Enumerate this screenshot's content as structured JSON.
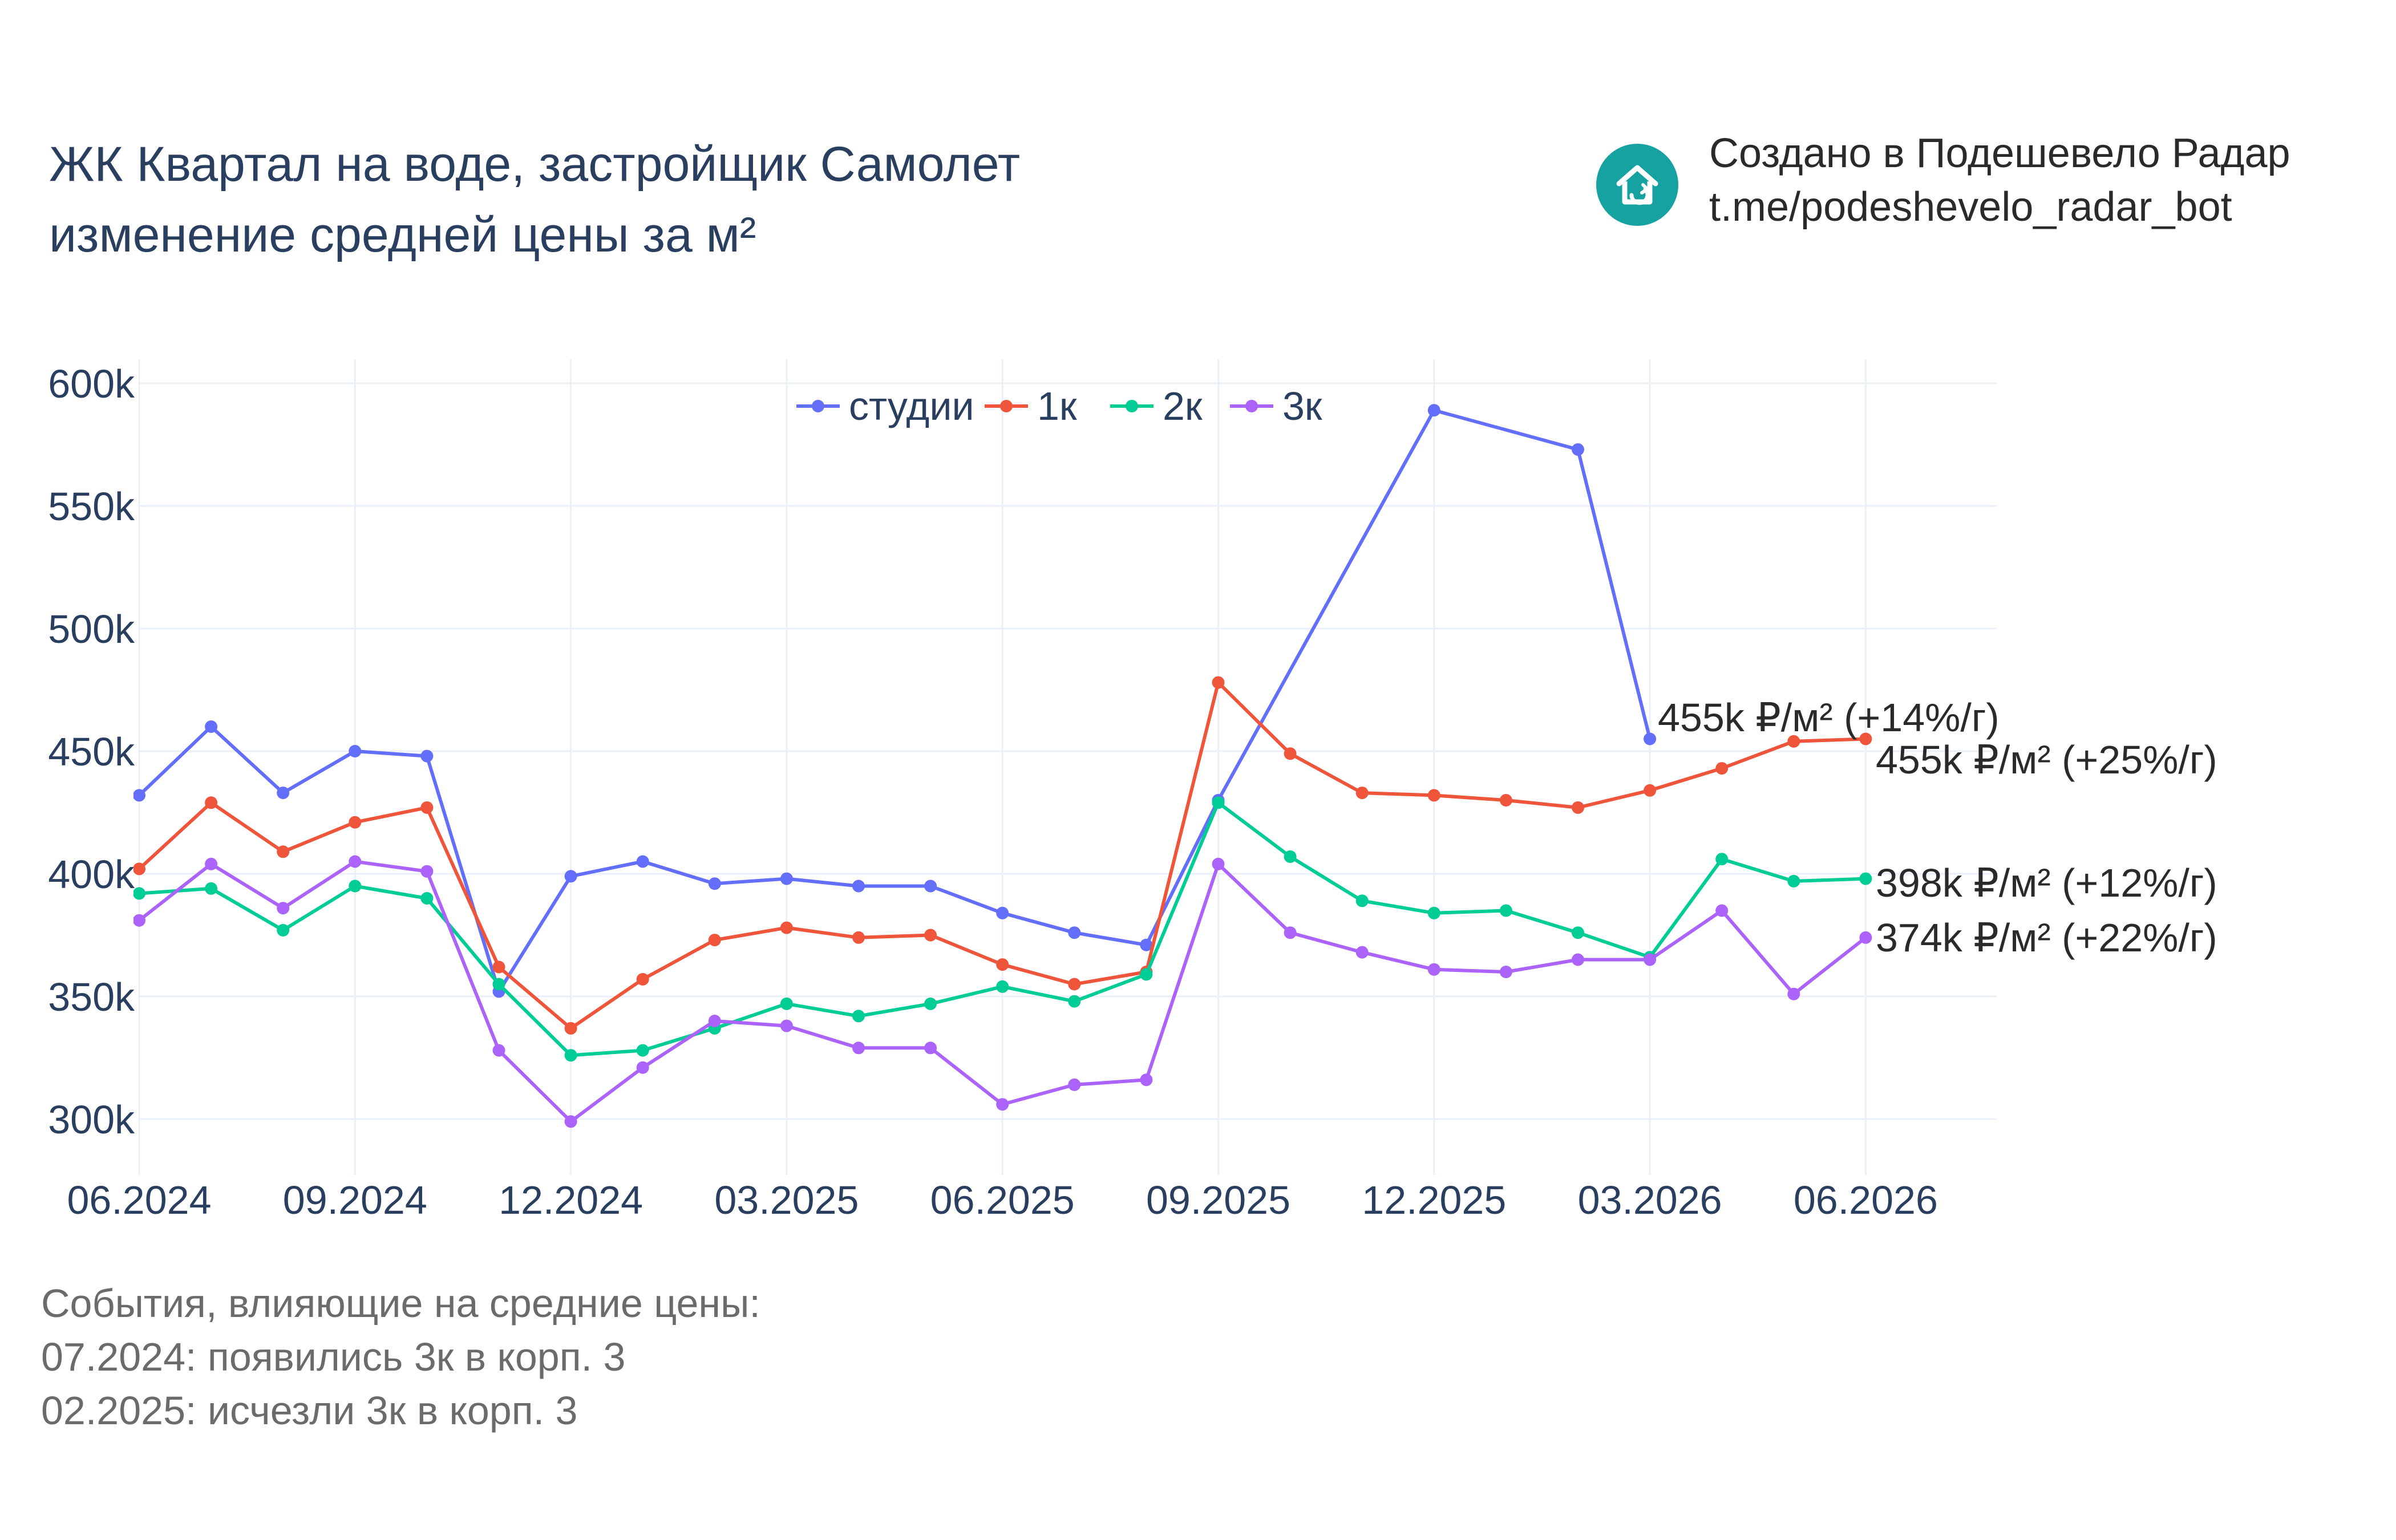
{
  "header": {
    "title_line1": "ЖК Квартал на воде, застройщик Самолет",
    "title_line2": "изменение средней цены за м²"
  },
  "brand": {
    "line1": "Создано в Подешевело Радар",
    "line2": "t.me/podeshevelo_radar_bot",
    "icon": "home-icon",
    "color": "#17a2a2"
  },
  "events": {
    "heading": "События, влияющие на средние цены:",
    "items": [
      "07.2024: появились 3к в корп. 3",
      "02.2025: исчезли 3к в корп. 3"
    ]
  },
  "chart_data": {
    "type": "line",
    "x": [
      "06.2024",
      "07.2024",
      "08.2024",
      "09.2024",
      "10.2024",
      "11.2024",
      "12.2024",
      "01.2025",
      "02.2025",
      "03.2025",
      "04.2025",
      "05.2025",
      "06.2025",
      "07.2025",
      "08.2025",
      "09.2025",
      "10.2025",
      "11.2025",
      "12.2025",
      "01.2026",
      "02.2026",
      "03.2026",
      "04.2026",
      "05.2026",
      "06.2026"
    ],
    "xticks": [
      "06.2024",
      "09.2024",
      "12.2024",
      "03.2025",
      "06.2025",
      "09.2025",
      "12.2025",
      "03.2026",
      "06.2026"
    ],
    "yticks": [
      "300k",
      "350k",
      "400k",
      "450k",
      "500k",
      "550k",
      "600k"
    ],
    "ylim": [
      280,
      610
    ],
    "grid": true,
    "legend_position": "top-center",
    "series": [
      {
        "name": "студии",
        "color": "#636efa",
        "values": [
          432,
          460,
          433,
          450,
          448,
          352,
          399,
          405,
          396,
          398,
          395,
          395,
          384,
          376,
          371,
          430,
          null,
          null,
          589,
          null,
          573,
          455,
          null,
          null,
          null
        ],
        "label": "455k ₽/м² (+14%/г)"
      },
      {
        "name": "1к",
        "color": "#ef553b",
        "values": [
          402,
          429,
          409,
          421,
          427,
          362,
          337,
          357,
          373,
          378,
          374,
          375,
          363,
          355,
          360,
          478,
          449,
          433,
          432,
          430,
          427,
          434,
          443,
          454,
          455
        ],
        "label": "455k ₽/м² (+25%/г)"
      },
      {
        "name": "2к",
        "color": "#00cc96",
        "values": [
          392,
          394,
          377,
          395,
          390,
          355,
          326,
          328,
          337,
          347,
          342,
          347,
          354,
          348,
          359,
          429,
          407,
          389,
          384,
          385,
          376,
          366,
          406,
          397,
          398
        ],
        "label": "398k ₽/м² (+12%/г)"
      },
      {
        "name": "3к",
        "color": "#ab63fa",
        "values": [
          381,
          404,
          386,
          405,
          401,
          328,
          299,
          321,
          340,
          338,
          329,
          329,
          306,
          314,
          316,
          404,
          376,
          368,
          361,
          360,
          365,
          365,
          385,
          351,
          374
        ],
        "label": "374k ₽/м² (+22%/г)"
      }
    ]
  }
}
